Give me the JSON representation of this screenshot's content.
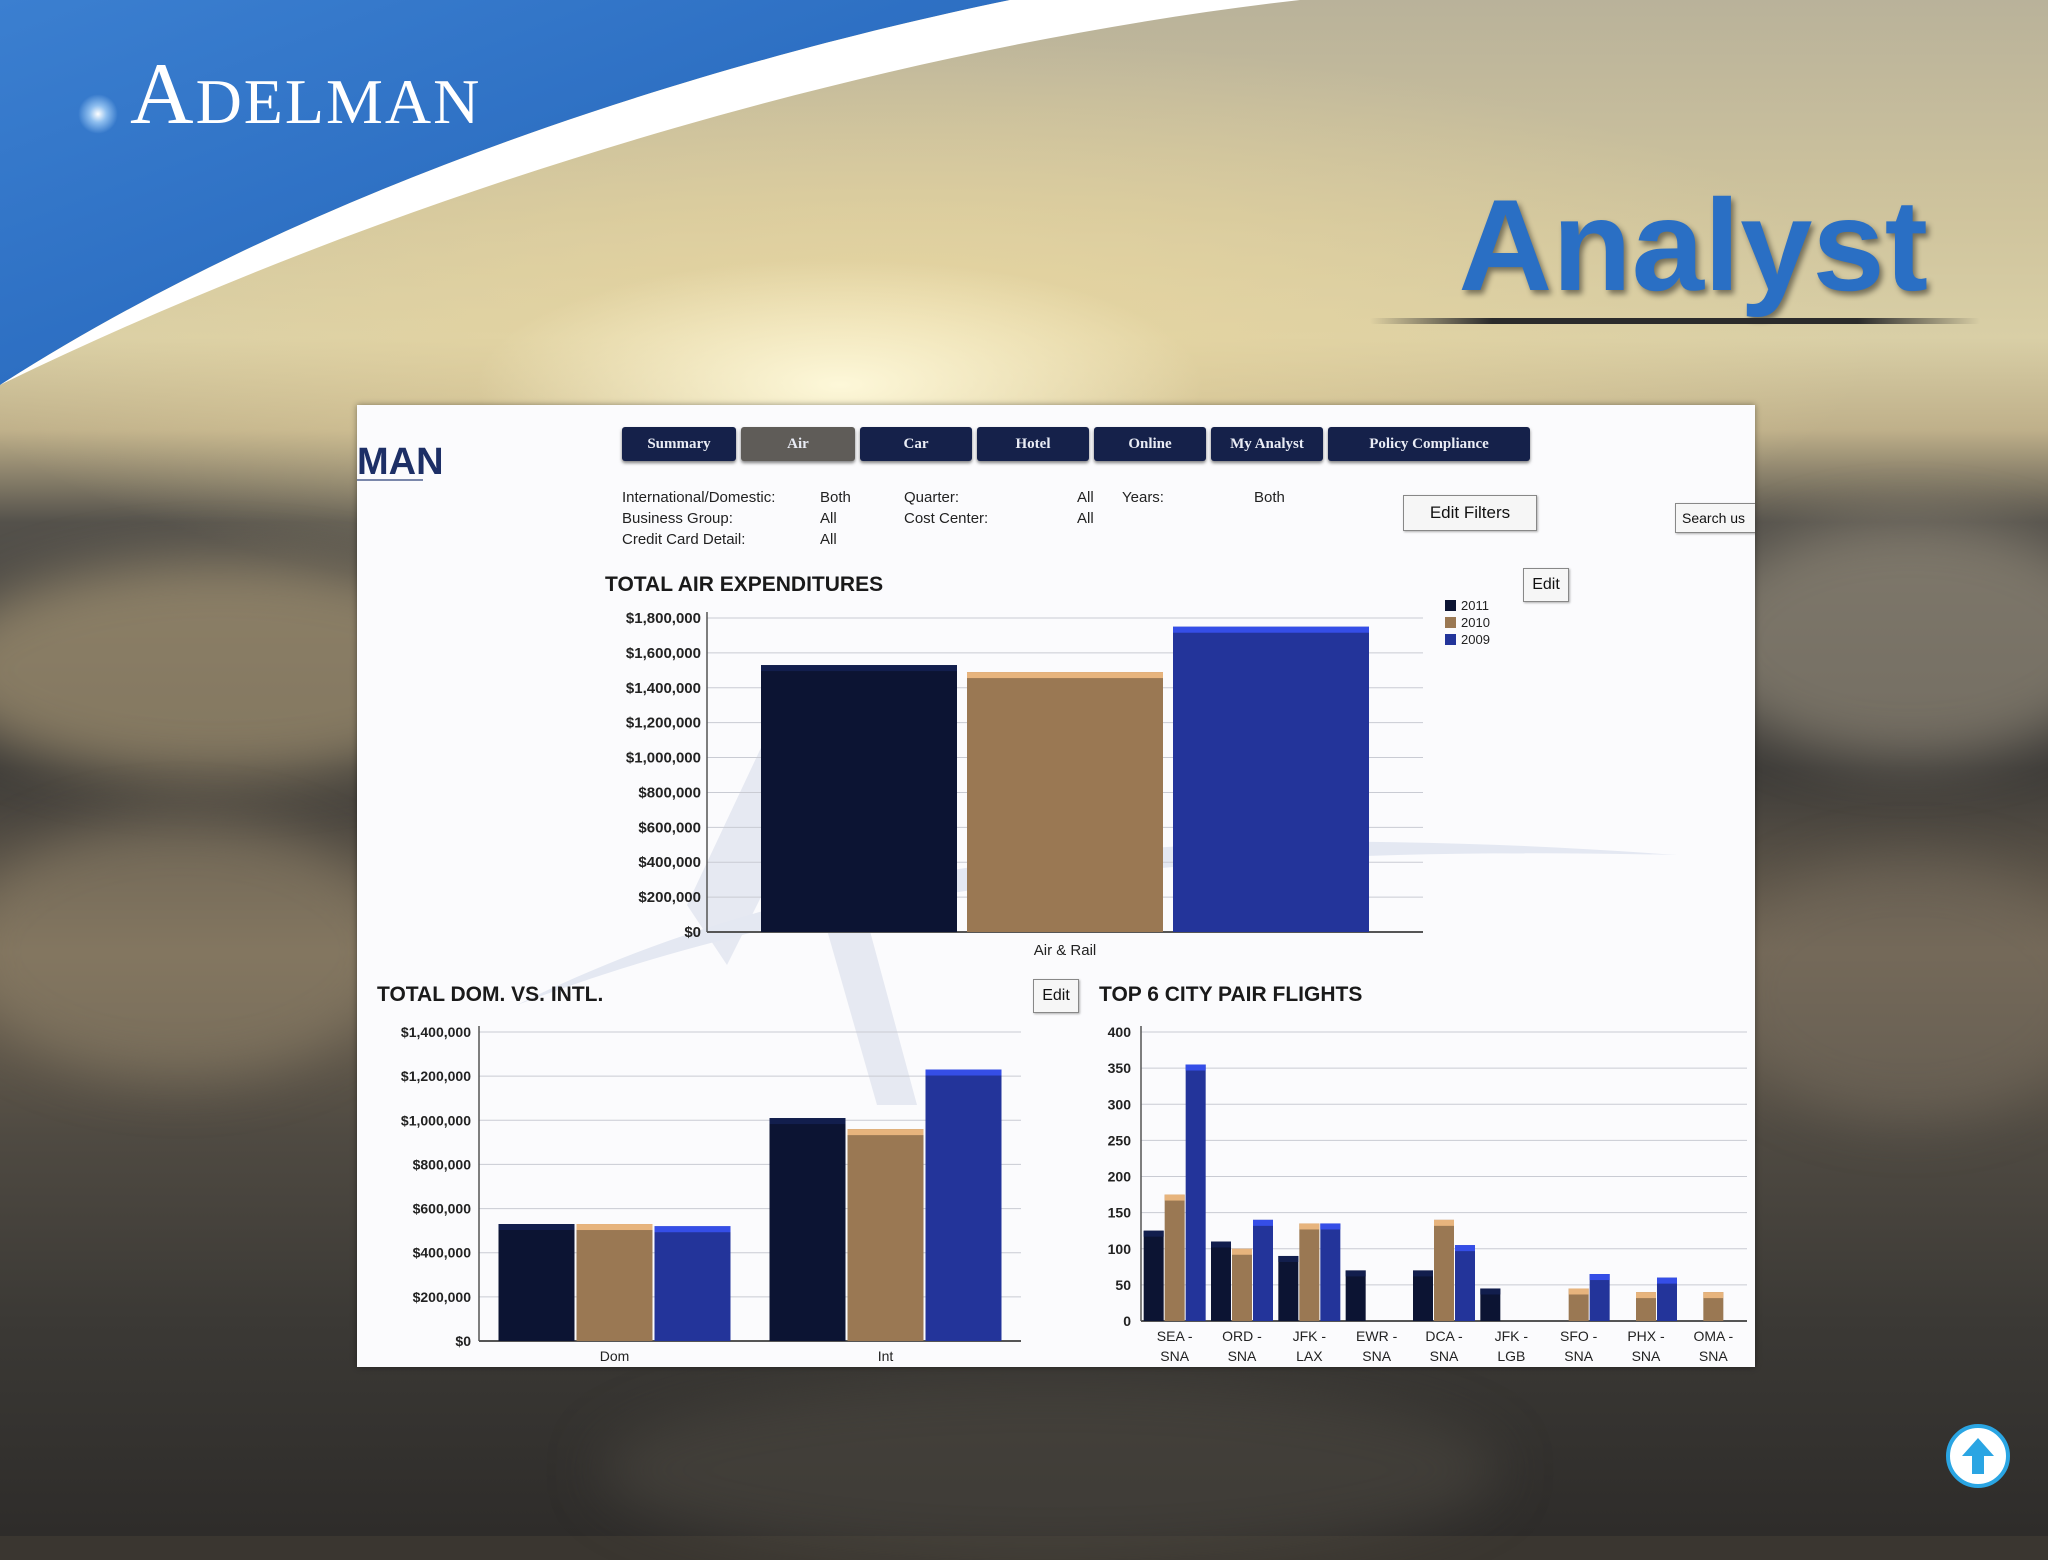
{
  "slide": {
    "logo_initial": "A",
    "logo_rest": "DELMAN",
    "title": "Analyst"
  },
  "app": {
    "logo_fragment": "MAN",
    "tabs": [
      {
        "label": "Summary",
        "active": false
      },
      {
        "label": "Air",
        "active": true
      },
      {
        "label": "Car",
        "active": false
      },
      {
        "label": "Hotel",
        "active": false
      },
      {
        "label": "Online",
        "active": false
      },
      {
        "label": "My Analyst",
        "active": false
      },
      {
        "label": "Policy Compliance",
        "active": false
      }
    ],
    "filters": {
      "intl_dom_label": "International/Domestic:",
      "intl_dom_value": "Both",
      "business_group_label": "Business Group:",
      "business_group_value": "All",
      "credit_card_label": "Credit Card Detail:",
      "credit_card_value": "All",
      "quarter_label": "Quarter:",
      "quarter_value": "All",
      "cost_center_label": "Cost Center:",
      "cost_center_value": "All",
      "years_label": "Years:",
      "years_value": "Both"
    },
    "edit_filters_label": "Edit Filters",
    "search_label": "Search us",
    "edit_label": "Edit"
  },
  "colors": {
    "2011": "#0c1433",
    "2010": "#9a7853",
    "2009": "#23349a",
    "accent": "#2a6fc4"
  },
  "chart_data": [
    {
      "type": "bar",
      "title": "TOTAL AIR EXPENDITURES",
      "categories": [
        "Air & Rail"
      ],
      "series": [
        {
          "name": "2011",
          "values": [
            1530000
          ]
        },
        {
          "name": "2010",
          "values": [
            1490000
          ]
        },
        {
          "name": "2009",
          "values": [
            1750000
          ]
        }
      ],
      "ylim": [
        0,
        1800000
      ],
      "yticks": [
        "$0",
        "$200,000",
        "$400,000",
        "$600,000",
        "$800,000",
        "$1,000,000",
        "$1,200,000",
        "$1,400,000",
        "$1,600,000",
        "$1,800,000"
      ],
      "legend": "top-right",
      "grid": true
    },
    {
      "type": "bar",
      "title": "TOTAL DOM. VS. INTL.",
      "categories": [
        "Dom",
        "Int"
      ],
      "series": [
        {
          "name": "2011",
          "values": [
            530000,
            1010000
          ]
        },
        {
          "name": "2010",
          "values": [
            530000,
            960000
          ]
        },
        {
          "name": "2009",
          "values": [
            520000,
            1230000
          ]
        }
      ],
      "ylim": [
        0,
        1400000
      ],
      "yticks": [
        "$0",
        "$200,000",
        "$400,000",
        "$600,000",
        "$800,000",
        "$1,000,000",
        "$1,200,000",
        "$1,400,000"
      ],
      "grid": true
    },
    {
      "type": "bar",
      "title": "TOP 6 CITY PAIR FLIGHTS",
      "categories": [
        "SEA - SNA",
        "ORD - SNA",
        "JFK - LAX",
        "EWR - SNA",
        "DCA - SNA",
        "JFK - LGB",
        "SFO - SNA",
        "PHX - SNA",
        "OMA - SNA"
      ],
      "series": [
        {
          "name": "2011",
          "values": [
            125,
            110,
            90,
            70,
            70,
            45,
            0,
            0,
            0
          ]
        },
        {
          "name": "2010",
          "values": [
            175,
            100,
            135,
            0,
            140,
            0,
            45,
            40,
            40
          ]
        },
        {
          "name": "2009",
          "values": [
            355,
            140,
            135,
            0,
            105,
            0,
            65,
            60,
            0
          ]
        }
      ],
      "ylim": [
        0,
        400
      ],
      "yticks": [
        "0",
        "50",
        "100",
        "150",
        "200",
        "250",
        "300",
        "350",
        "400"
      ],
      "grid": true
    }
  ]
}
